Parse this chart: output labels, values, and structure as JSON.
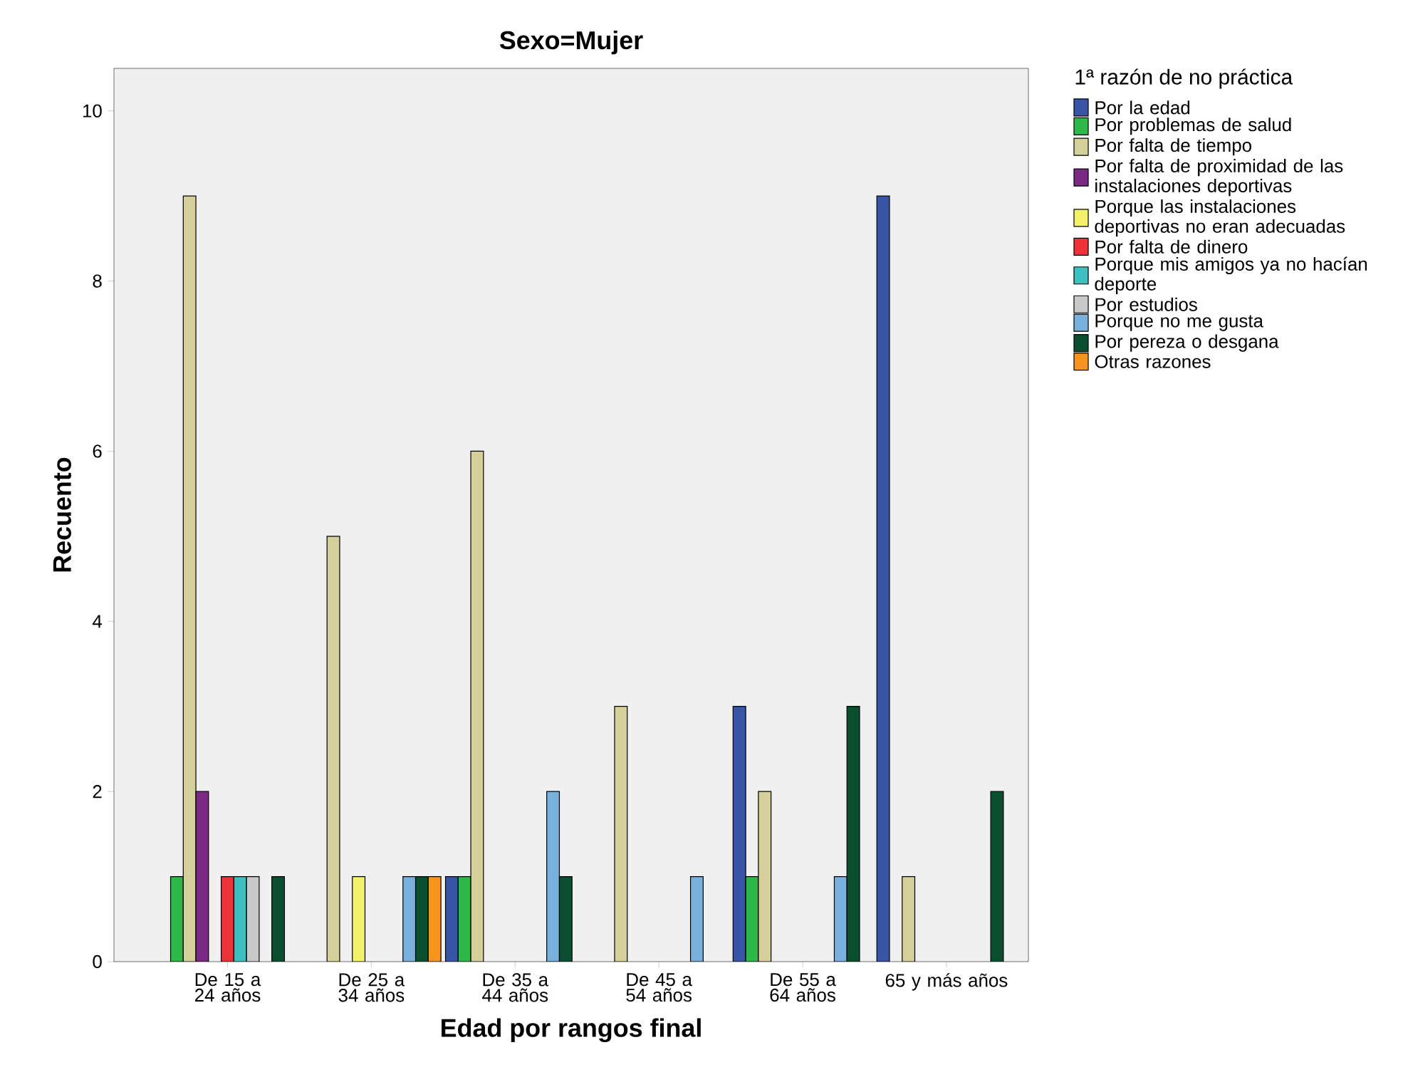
{
  "chart_data": {
    "type": "bar",
    "title": "Sexo=Mujer",
    "xlabel": "Edad por rangos final",
    "ylabel": "Recuento",
    "legend_title": "1ª razón de no práctica",
    "categories": [
      "De 15 a 24 años",
      "De 25 a 34 años",
      "De 35 a 44 años",
      "De 45 a 54 años",
      "De 55 a 64 años",
      "65 y más años"
    ],
    "series": [
      {
        "name": "Por la edad",
        "color": "#3a55a8",
        "values": [
          null,
          null,
          1,
          null,
          3,
          9
        ]
      },
      {
        "name": "Por problemas de salud",
        "color": "#2db84a",
        "values": [
          1,
          null,
          1,
          null,
          1,
          null
        ]
      },
      {
        "name": "Por falta de tiempo",
        "color": "#d5d09a",
        "values": [
          9,
          5,
          6,
          3,
          2,
          1
        ]
      },
      {
        "name": "Por falta de proximidad de las instalaciones deportivas",
        "color": "#7a2a84",
        "values": [
          2,
          null,
          null,
          null,
          null,
          null
        ]
      },
      {
        "name": "Porque las instalaciones deportivas no eran adecuadas",
        "color": "#f5f06a",
        "values": [
          null,
          1,
          null,
          null,
          null,
          null
        ]
      },
      {
        "name": "Por falta de dinero",
        "color": "#ee3338",
        "values": [
          1,
          null,
          null,
          null,
          null,
          null
        ]
      },
      {
        "name": "Porque mis amigos ya no hacían deporte",
        "color": "#3fbfbf",
        "values": [
          1,
          null,
          null,
          null,
          null,
          null
        ]
      },
      {
        "name": "Por estudios",
        "color": "#c8c8c8",
        "values": [
          1,
          null,
          null,
          null,
          null,
          null
        ]
      },
      {
        "name": "Porque no me gusta",
        "color": "#7ab0dc",
        "values": [
          null,
          1,
          2,
          1,
          1,
          null
        ]
      },
      {
        "name": "Por pereza o desgana",
        "color": "#0a5030",
        "values": [
          1,
          1,
          1,
          null,
          3,
          2
        ]
      },
      {
        "name": "Otras razones",
        "color": "#f7941d",
        "values": [
          null,
          1,
          null,
          null,
          null,
          null
        ]
      }
    ],
    "ylim": [
      0,
      10.5
    ],
    "yticks": [
      0,
      2,
      4,
      6,
      8,
      10
    ],
    "grid": false,
    "legend": "right"
  }
}
